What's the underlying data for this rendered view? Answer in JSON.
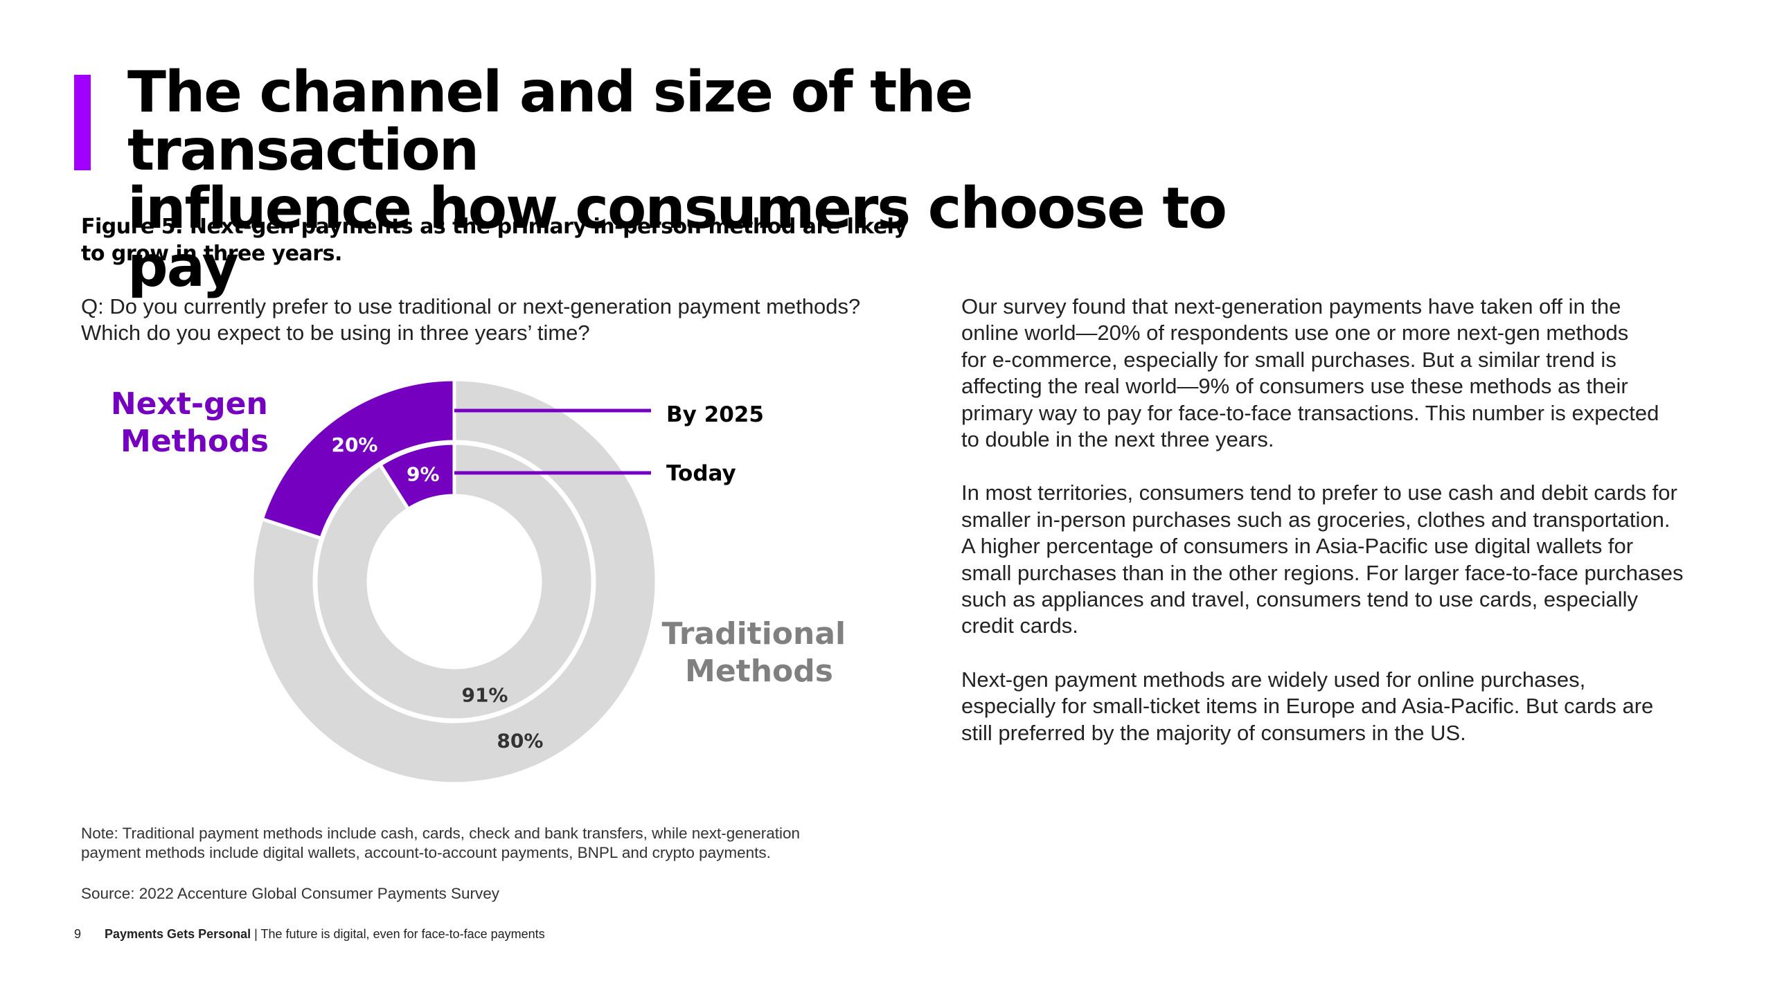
{
  "title": {
    "line1": "The channel and size of the transaction",
    "line2": "influence how consumers choose to pay"
  },
  "figure": {
    "caption_line1": "Figure 5. Next-gen payments as the primary in-person method are likely",
    "caption_line2": "to grow in three years.",
    "question_line1": "Q: Do you currently prefer to use traditional or next-generation payment methods?",
    "question_line2": "Which do you expect to be using in three years’ time?"
  },
  "chart_data": {
    "type": "pie",
    "variant": "nested-donut",
    "title": "Figure 5. Next-gen payments as the primary in-person method are likely to grow in three years.",
    "categories": [
      "Next-gen Methods",
      "Traditional Methods"
    ],
    "series": [
      {
        "name": "By 2025",
        "ring": "outer",
        "values": [
          20,
          80
        ],
        "value_labels": [
          "20%",
          "80%"
        ]
      },
      {
        "name": "Today",
        "ring": "inner",
        "values": [
          9,
          91
        ],
        "value_labels": [
          "9%",
          "91%"
        ]
      }
    ],
    "category_labels": {
      "nextgen_line1": "Next-gen",
      "nextgen_line2": "Methods",
      "traditional_line1": "Traditional",
      "traditional_line2": "Methods"
    },
    "colors": {
      "nextgen": "#7500c0",
      "traditional": "#d9d9d9",
      "traditional_label": "#808080",
      "leader": "#7500c0"
    }
  },
  "text": {
    "p1": [
      "Our survey found that next-generation payments have taken off in the",
      "online world—20% of respondents use one or more next-gen methods",
      "for e-commerce, especially for small purchases. But a similar trend is",
      "affecting the real world—9% of consumers use these methods as their",
      "primary way to pay for face-to-face transactions. This number is expected",
      "to double in the next three years."
    ],
    "p2": [
      "In most territories, consumers tend to prefer to use cash and debit cards for",
      "smaller in-person purchases such as groceries, clothes and transportation.",
      "A higher percentage of consumers in Asia-Pacific use digital wallets for",
      "small purchases than in the other regions. For larger face-to-face purchases",
      "such as appliances and travel, consumers tend to use cards, especially",
      "credit cards."
    ],
    "p3": [
      "Next-gen payment methods are widely used for online purchases,",
      "especially for small-ticket items in Europe and Asia-Pacific. But cards are",
      "still preferred by the majority of consumers in the US."
    ]
  },
  "note": {
    "line1": "Note: Traditional payment methods include cash, cards, check and bank transfers, while next-generation",
    "line2": "payment methods include digital wallets, account-to-account payments, BNPL and crypto payments."
  },
  "source": "Source: 2022 Accenture Global Consumer Payments Survey",
  "footer": {
    "page_number": "9",
    "report_title": "Payments Gets Personal",
    "separator": " | ",
    "subtitle": "The future is digital, even for face-to-face payments"
  },
  "colors": {
    "accent": "#a100ff"
  }
}
